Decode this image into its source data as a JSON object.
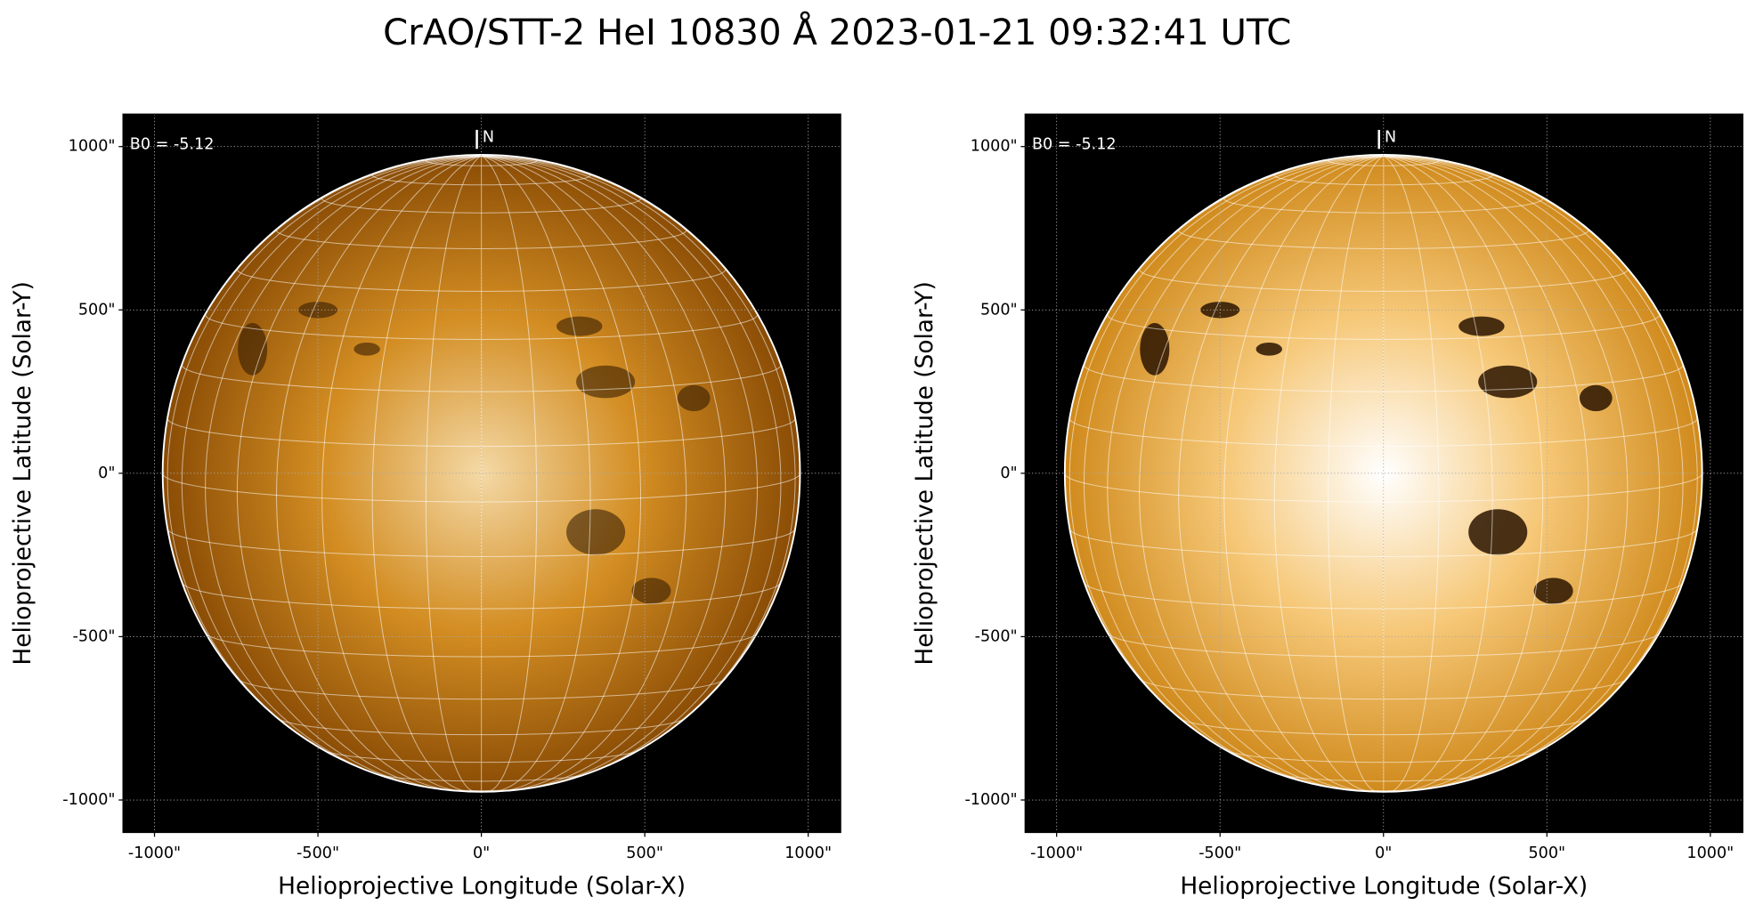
{
  "title": "CrAO/STT-2 HeI 10830 Å 2023-01-21 09:32:41 UTC",
  "chart_data": [
    {
      "type": "solar-image",
      "annotation": "B0 = -5.12",
      "north_label": "N",
      "xlabel": "Helioprojective Longitude (Solar-X)",
      "ylabel": "Helioprojective Latitude (Solar-Y)",
      "xlim": [
        -1096,
        1099
      ],
      "ylim": [
        -1099,
        1099
      ],
      "solar_radius": 975,
      "grid": true,
      "xticks": [
        {
          "value": -1000,
          "label": "-1000\""
        },
        {
          "value": -500,
          "label": "-500\""
        },
        {
          "value": 0,
          "label": "0\""
        },
        {
          "value": 500,
          "label": "500\""
        },
        {
          "value": 1000,
          "label": "1000\""
        }
      ],
      "yticks": [
        {
          "value": -1000,
          "label": "-1000\""
        },
        {
          "value": -500,
          "label": "-500\""
        },
        {
          "value": 0,
          "label": "0\""
        },
        {
          "value": 500,
          "label": "500\""
        },
        {
          "value": 1000,
          "label": "1000\""
        }
      ],
      "disk_colors": [
        "#f4d9a6",
        "#d38d22",
        "#8a4c05"
      ]
    },
    {
      "type": "solar-image",
      "annotation": "B0 = -5.12",
      "north_label": "N",
      "xlabel": "Helioprojective Longitude (Solar-X)",
      "ylabel": "Helioprojective Latitude (Solar-Y)",
      "xlim": [
        -1096,
        1099
      ],
      "ylim": [
        -1099,
        1099
      ],
      "solar_radius": 975,
      "grid": true,
      "xticks": [
        {
          "value": -1000,
          "label": "-1000\""
        },
        {
          "value": -500,
          "label": "-500\""
        },
        {
          "value": 0,
          "label": "0\""
        },
        {
          "value": 500,
          "label": "500\""
        },
        {
          "value": 1000,
          "label": "1000\""
        }
      ],
      "yticks": [
        {
          "value": -1000,
          "label": "-1000\""
        },
        {
          "value": -500,
          "label": "-500\""
        },
        {
          "value": 0,
          "label": "0\""
        },
        {
          "value": 500,
          "label": "500\""
        },
        {
          "value": 1000,
          "label": "1000\""
        }
      ],
      "disk_colors": [
        "#ffffff",
        "#f6c878",
        "#d08a1c"
      ]
    }
  ]
}
